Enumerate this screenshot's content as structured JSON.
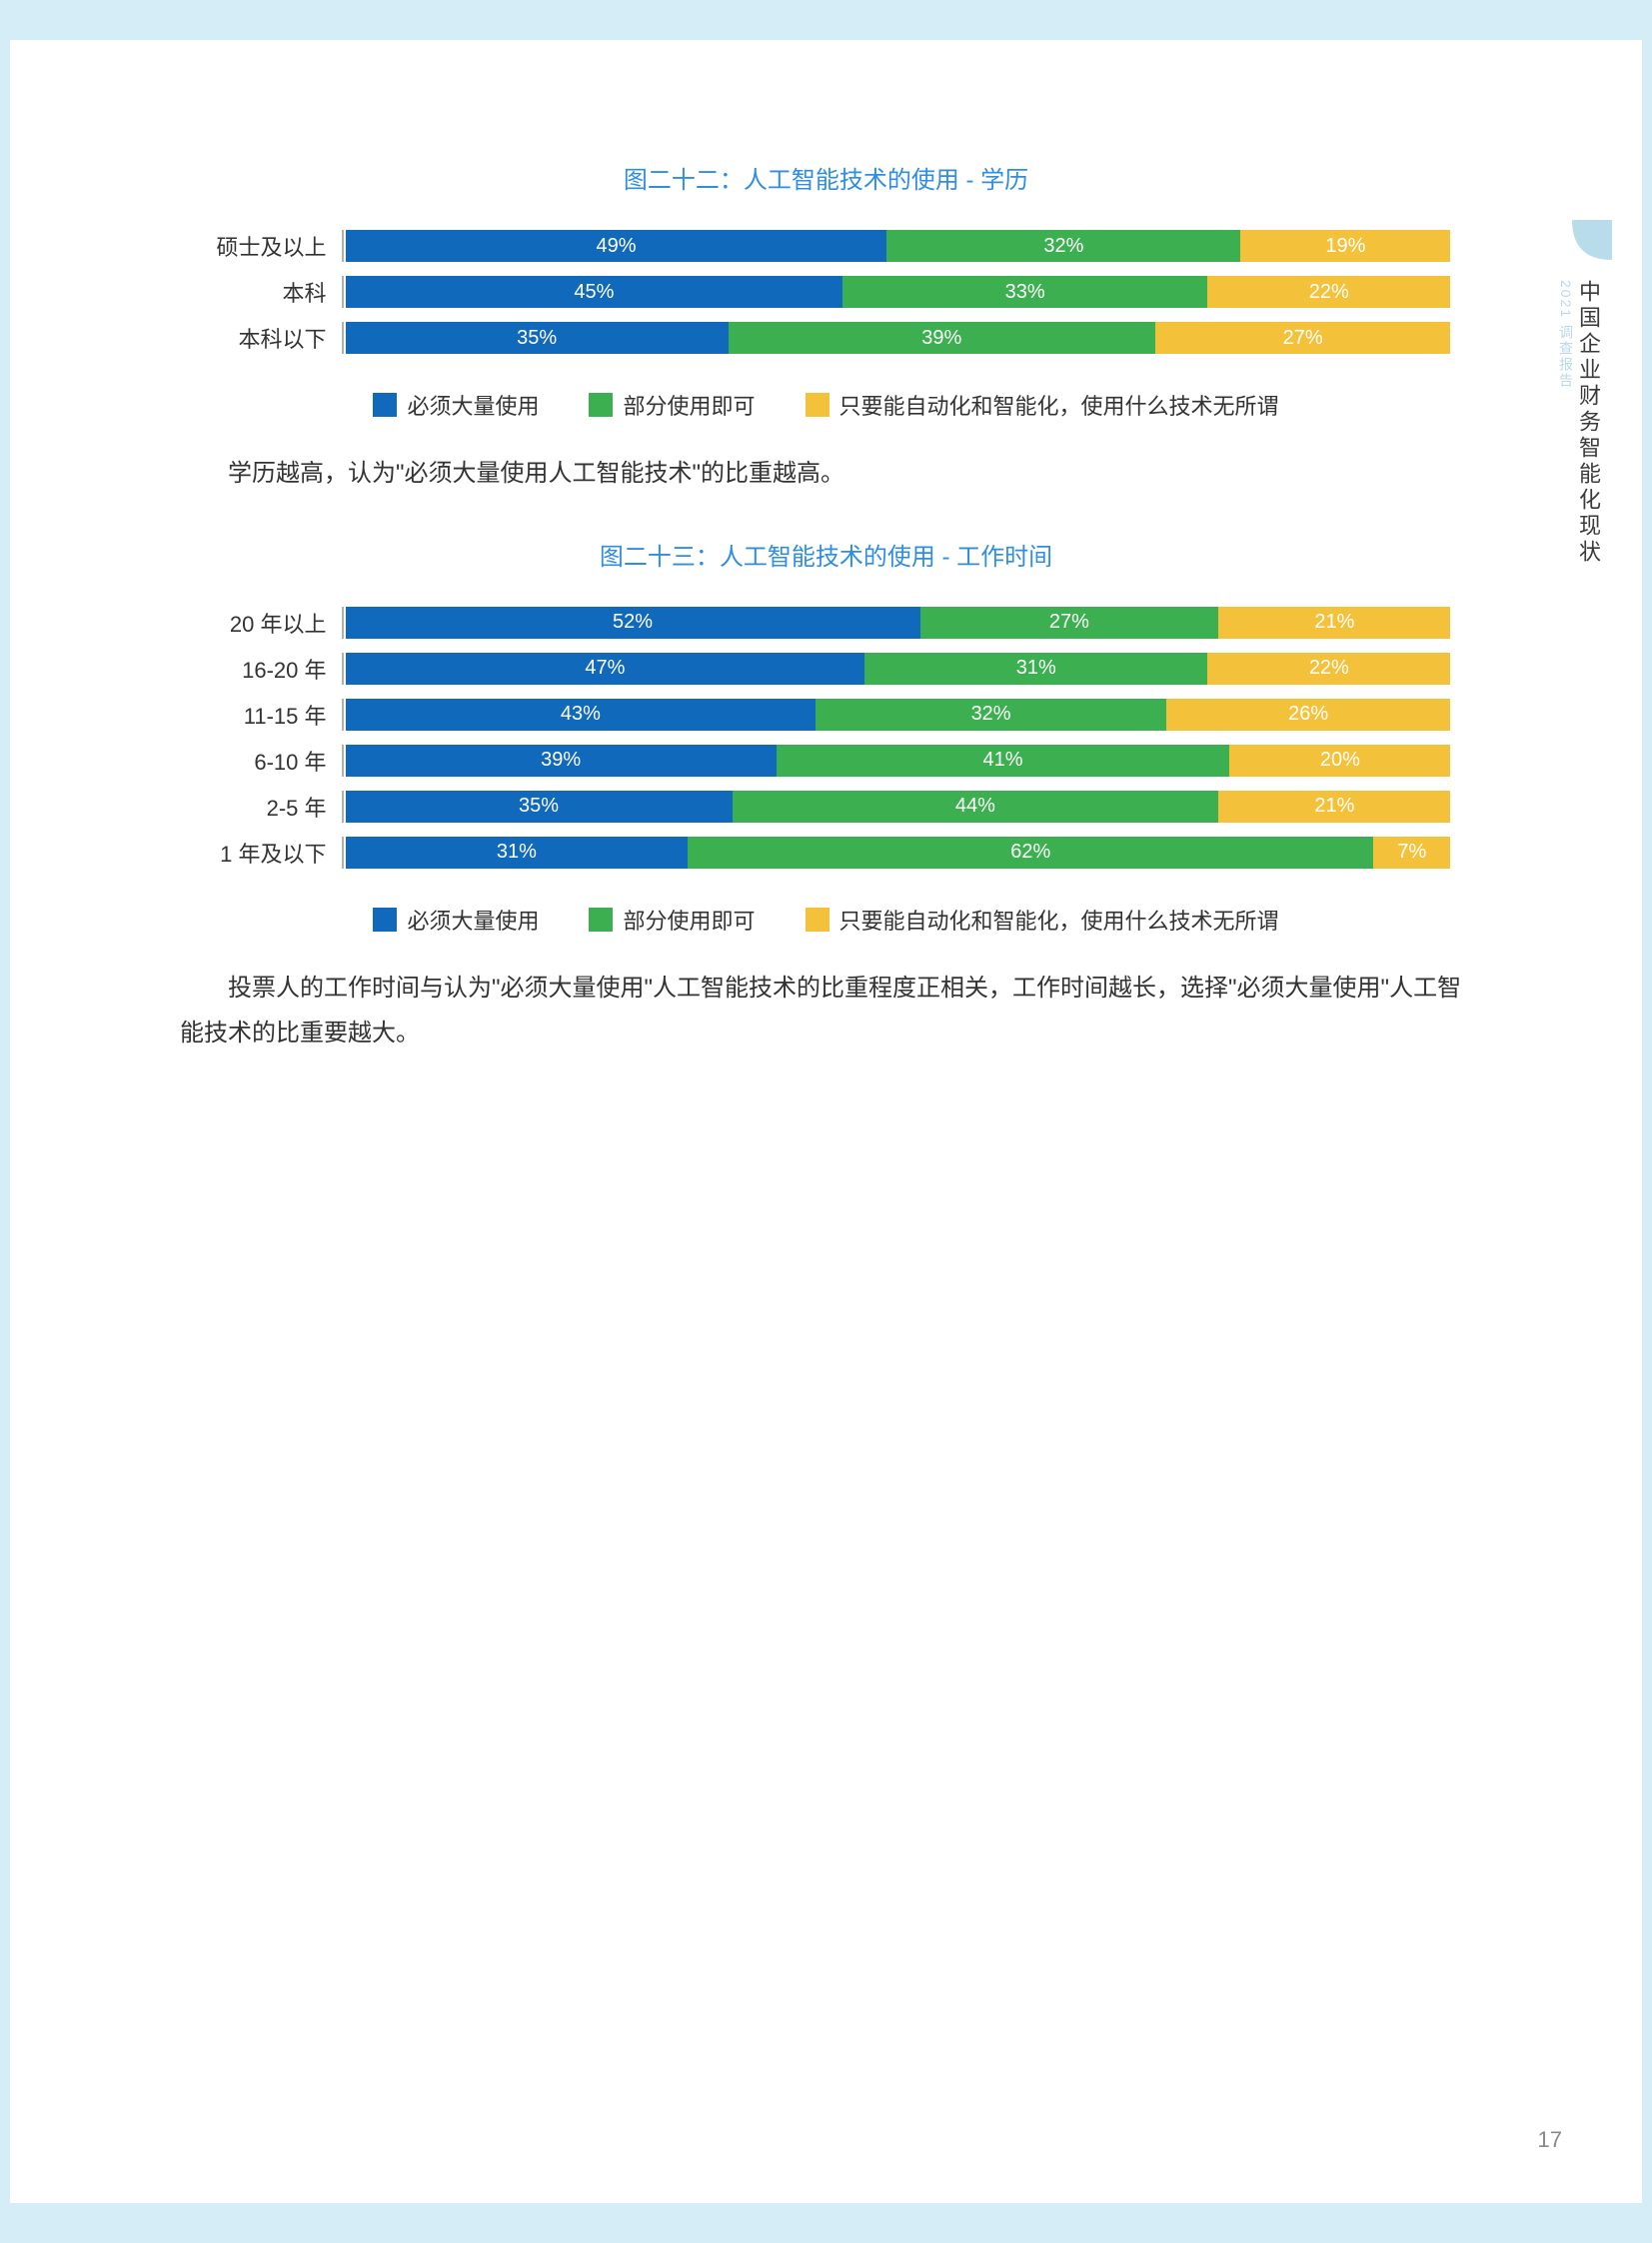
{
  "page_number": "17",
  "side": {
    "sub": "2021 调查报告",
    "title": "中国企业财务智能化现状",
    "tab_color": "#b9dceb"
  },
  "colors": {
    "blue": "#1169bb",
    "green": "#3cb050",
    "yellow": "#f3c13a",
    "title": "#2f8de4",
    "text": "#333333"
  },
  "legend": {
    "a": "必须大量使用",
    "b": "部分使用即可",
    "c": "只要能自动化和智能化，使用什么技术无所谓"
  },
  "chart22": {
    "title": "图二十二：人工智能技术的使用 - 学历",
    "rows": [
      {
        "label": "硕士及以上",
        "a": 49,
        "b": 32,
        "c": 19
      },
      {
        "label": "本科",
        "a": 45,
        "b": 33,
        "c": 22
      },
      {
        "label": "本科以下",
        "a": 35,
        "b": 39,
        "c": 27
      }
    ],
    "note": "学历越高，认为\"必须大量使用人工智能技术\"的比重越高。"
  },
  "chart23": {
    "title": "图二十三：人工智能技术的使用 - 工作时间",
    "rows": [
      {
        "label": "20 年以上",
        "a": 52,
        "b": 27,
        "c": 21
      },
      {
        "label": "16-20 年",
        "a": 47,
        "b": 31,
        "c": 22
      },
      {
        "label": "11-15 年",
        "a": 43,
        "b": 32,
        "c": 26
      },
      {
        "label": "6-10 年",
        "a": 39,
        "b": 41,
        "c": 20
      },
      {
        "label": "2-5 年",
        "a": 35,
        "b": 44,
        "c": 21
      },
      {
        "label": "1 年及以下",
        "a": 31,
        "b": 62,
        "c": 7
      }
    ],
    "note": "投票人的工作时间与认为\"必须大量使用\"人工智能技术的比重程度正相关，工作时间越长，选择\"必须大量使用\"人工智能技术的比重要越大。"
  }
}
